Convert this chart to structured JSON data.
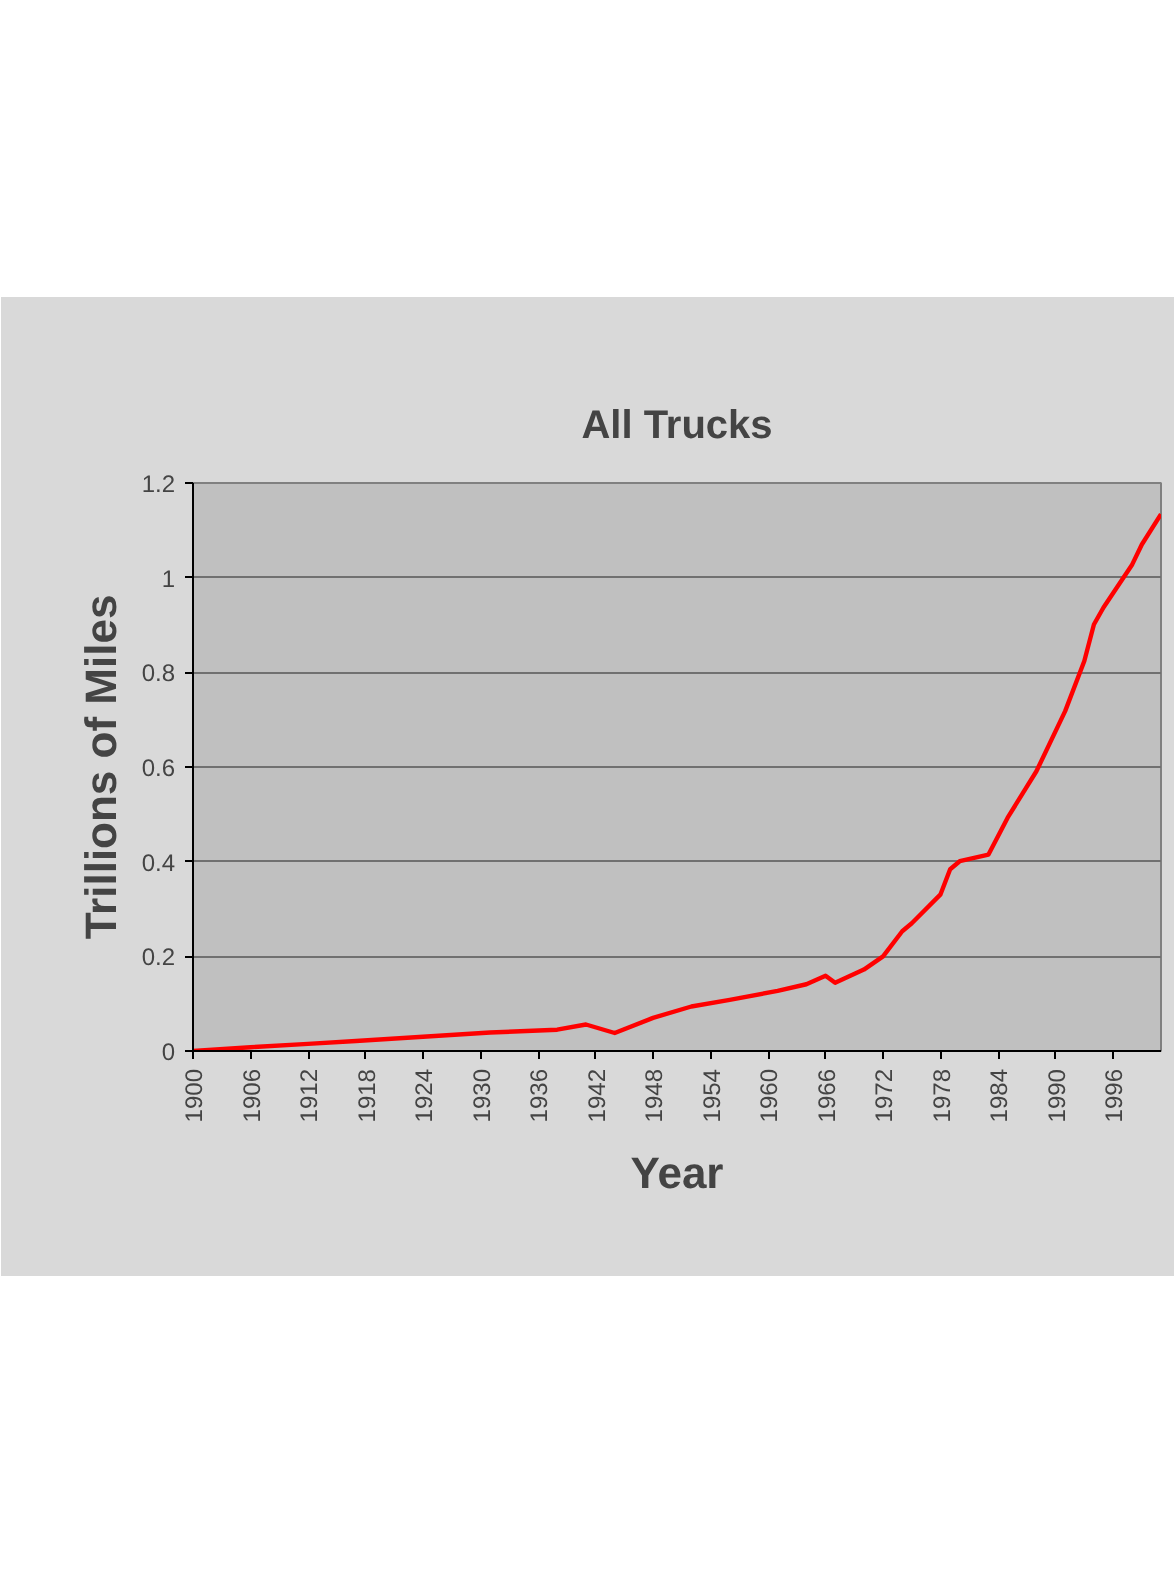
{
  "chart_data": {
    "type": "line",
    "title": "All Trucks",
    "xlabel": "Year",
    "ylabel": "Trillions of Miles",
    "x": [
      1900,
      1906,
      1912,
      1917,
      1924,
      1931,
      1938,
      1941,
      1944,
      1948,
      1952,
      1956,
      1961,
      1964,
      1966,
      1967,
      1970,
      1972,
      1974,
      1975,
      1978,
      1979,
      1980,
      1983,
      1985,
      1988,
      1991,
      1993,
      1994,
      1995,
      1998,
      1999,
      2001
    ],
    "series": [
      {
        "color": "#ff0000",
        "values": [
          0,
          0.008,
          0.015,
          0.021,
          0.03,
          0.039,
          0.045,
          0.056,
          0.038,
          0.07,
          0.094,
          0.108,
          0.127,
          0.141,
          0.159,
          0.144,
          0.172,
          0.2,
          0.253,
          0.27,
          0.331,
          0.384,
          0.401,
          0.415,
          0.493,
          0.591,
          0.718,
          0.824,
          0.901,
          0.937,
          1.028,
          1.07,
          1.134
        ]
      }
    ],
    "xlim": [
      1900,
      2001
    ],
    "xticks": [
      1900,
      1906,
      1912,
      1918,
      1924,
      1930,
      1936,
      1942,
      1948,
      1954,
      1960,
      1966,
      1972,
      1978,
      1984,
      1990,
      1996
    ],
    "ylim": [
      0,
      1.2
    ],
    "yticks": [
      0,
      0.2,
      0.4,
      0.6,
      0.8,
      1,
      1.2
    ],
    "grid": "y"
  }
}
